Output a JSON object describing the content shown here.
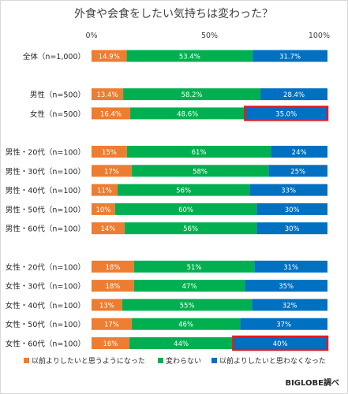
{
  "chart_data": {
    "type": "bar",
    "orientation": "horizontal",
    "stacked": true,
    "normalized": true,
    "title": "外食や会食をしたい気持ちは変わった？",
    "x_ticks": [
      "0%",
      "50%",
      "100%"
    ],
    "xlim": [
      0,
      100
    ],
    "grid": false,
    "legend_position": "bottom",
    "source": "BIGLOBE調べ",
    "colors": [
      "#ed7d31",
      "#00b050",
      "#0070c0"
    ],
    "highlight_color": "#e31b23",
    "series": [
      {
        "name": "以前よりしたいと思うようになった"
      },
      {
        "name": "変わらない"
      },
      {
        "name": "以前よりしたいと思わなくなった"
      }
    ],
    "groups": [
      {
        "rows": [
          {
            "category": "全体（n=1,000）",
            "values": [
              14.9,
              53.4,
              31.7
            ],
            "labels": [
              "14.9%",
              "53.4%",
              "31.7%"
            ]
          }
        ]
      },
      {
        "rows": [
          {
            "category": "男性（n=500）",
            "values": [
              13.4,
              58.2,
              28.4
            ],
            "labels": [
              "13.4%",
              "58.2%",
              "28.4%"
            ]
          },
          {
            "category": "女性（n=500）",
            "values": [
              16.4,
              48.6,
              35.0
            ],
            "labels": [
              "16.4%",
              "48.6%",
              "35.0%"
            ],
            "highlight": 2
          }
        ]
      },
      {
        "rows": [
          {
            "category": "男性・20代（n=100）",
            "values": [
              15,
              61,
              24
            ],
            "labels": [
              "15%",
              "61%",
              "24%"
            ]
          },
          {
            "category": "男性・30代（n=100）",
            "values": [
              17,
              58,
              25
            ],
            "labels": [
              "17%",
              "58%",
              "25%"
            ]
          },
          {
            "category": "男性・40代（n=100）",
            "values": [
              11,
              56,
              33
            ],
            "labels": [
              "11%",
              "56%",
              "33%"
            ]
          },
          {
            "category": "男性・50代（n=100）",
            "values": [
              10,
              60,
              30
            ],
            "labels": [
              "10%",
              "60%",
              "30%"
            ]
          },
          {
            "category": "男性・60代（n=100）",
            "values": [
              14,
              56,
              30
            ],
            "labels": [
              "14%",
              "56%",
              "30%"
            ]
          }
        ]
      },
      {
        "rows": [
          {
            "category": "女性・20代（n=100）",
            "values": [
              18,
              51,
              31
            ],
            "labels": [
              "18%",
              "51%",
              "31%"
            ]
          },
          {
            "category": "女性・30代（n=100）",
            "values": [
              18,
              47,
              35
            ],
            "labels": [
              "18%",
              "47%",
              "35%"
            ]
          },
          {
            "category": "女性・40代（n=100）",
            "values": [
              13,
              55,
              32
            ],
            "labels": [
              "13%",
              "55%",
              "32%"
            ]
          },
          {
            "category": "女性・50代（n=100）",
            "values": [
              17,
              46,
              37
            ],
            "labels": [
              "17%",
              "46%",
              "37%"
            ]
          },
          {
            "category": "女性・60代（n=100）",
            "values": [
              16,
              44,
              40
            ],
            "labels": [
              "16%",
              "44%",
              "40%"
            ],
            "highlight": 2
          }
        ]
      }
    ]
  }
}
